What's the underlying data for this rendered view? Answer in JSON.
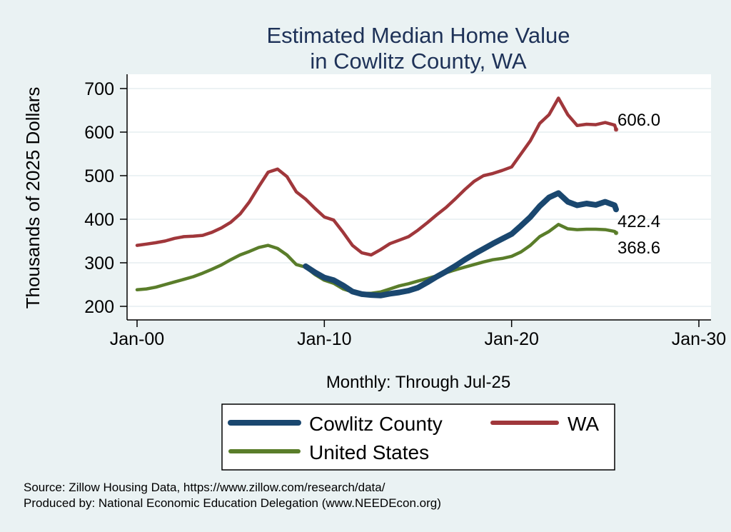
{
  "chart_data": {
    "type": "line",
    "title": [
      "Estimated Median Home Value",
      "in Cowlitz County, WA"
    ],
    "ylabel": "Thousands of 2025 Dollars",
    "xlabel": "Monthly: Through Jul-25",
    "ylim": [
      185,
      720
    ],
    "yticks": [
      200,
      300,
      400,
      500,
      600,
      700
    ],
    "xlim": [
      0,
      31
    ],
    "xticks": [
      0,
      10,
      20,
      30
    ],
    "xtick_labels": [
      "Jan-00",
      "Jan-10",
      "Jan-20",
      "Jan-30"
    ],
    "x_units": "years since Jan-2000",
    "grid": true,
    "legend_position": "bottom",
    "series": [
      {
        "name": "Cowlitz County",
        "color": "#1a476f",
        "points": [
          [
            9.0,
            292
          ],
          [
            9.5,
            278
          ],
          [
            10.0,
            266
          ],
          [
            10.5,
            260
          ],
          [
            11.0,
            248
          ],
          [
            11.5,
            234
          ],
          [
            12.0,
            228
          ],
          [
            12.5,
            226
          ],
          [
            13.0,
            225
          ],
          [
            13.5,
            229
          ],
          [
            14.0,
            232
          ],
          [
            14.5,
            236
          ],
          [
            15.0,
            243
          ],
          [
            15.5,
            255
          ],
          [
            16.0,
            268
          ],
          [
            16.5,
            280
          ],
          [
            17.0,
            293
          ],
          [
            17.5,
            307
          ],
          [
            18.0,
            320
          ],
          [
            18.5,
            332
          ],
          [
            19.0,
            344
          ],
          [
            19.5,
            355
          ],
          [
            20.0,
            366
          ],
          [
            20.5,
            385
          ],
          [
            21.0,
            405
          ],
          [
            21.5,
            430
          ],
          [
            22.0,
            450
          ],
          [
            22.5,
            460
          ],
          [
            23.0,
            440
          ],
          [
            23.5,
            432
          ],
          [
            24.0,
            436
          ],
          [
            24.5,
            433
          ],
          [
            25.0,
            440
          ],
          [
            25.5,
            432
          ],
          [
            25.58,
            422.4
          ]
        ],
        "end_label": "422.4"
      },
      {
        "name": "WA",
        "color": "#a0373b",
        "points": [
          [
            0.0,
            340
          ],
          [
            0.5,
            343
          ],
          [
            1.0,
            346
          ],
          [
            1.5,
            350
          ],
          [
            2.0,
            356
          ],
          [
            2.5,
            360
          ],
          [
            3.0,
            361
          ],
          [
            3.5,
            363
          ],
          [
            4.0,
            370
          ],
          [
            4.5,
            380
          ],
          [
            5.0,
            393
          ],
          [
            5.5,
            412
          ],
          [
            6.0,
            440
          ],
          [
            6.5,
            475
          ],
          [
            7.0,
            508
          ],
          [
            7.5,
            515
          ],
          [
            8.0,
            498
          ],
          [
            8.5,
            463
          ],
          [
            9.0,
            446
          ],
          [
            9.5,
            425
          ],
          [
            10.0,
            405
          ],
          [
            10.5,
            398
          ],
          [
            11.0,
            370
          ],
          [
            11.5,
            340
          ],
          [
            12.0,
            323
          ],
          [
            12.5,
            318
          ],
          [
            13.0,
            330
          ],
          [
            13.5,
            344
          ],
          [
            14.0,
            352
          ],
          [
            14.5,
            360
          ],
          [
            15.0,
            375
          ],
          [
            15.5,
            392
          ],
          [
            16.0,
            410
          ],
          [
            16.5,
            427
          ],
          [
            17.0,
            447
          ],
          [
            17.5,
            468
          ],
          [
            18.0,
            487
          ],
          [
            18.5,
            500
          ],
          [
            19.0,
            505
          ],
          [
            19.5,
            512
          ],
          [
            20.0,
            520
          ],
          [
            20.5,
            550
          ],
          [
            21.0,
            580
          ],
          [
            21.5,
            620
          ],
          [
            22.0,
            640
          ],
          [
            22.5,
            678
          ],
          [
            23.0,
            640
          ],
          [
            23.5,
            615
          ],
          [
            24.0,
            618
          ],
          [
            24.5,
            617
          ],
          [
            25.0,
            622
          ],
          [
            25.5,
            616
          ],
          [
            25.58,
            606.0
          ]
        ],
        "end_label": "606.0"
      },
      {
        "name": "United States",
        "color": "#5a7d2a",
        "points": [
          [
            0.0,
            238
          ],
          [
            0.5,
            240
          ],
          [
            1.0,
            244
          ],
          [
            1.5,
            250
          ],
          [
            2.0,
            256
          ],
          [
            2.5,
            262
          ],
          [
            3.0,
            268
          ],
          [
            3.5,
            276
          ],
          [
            4.0,
            285
          ],
          [
            4.5,
            295
          ],
          [
            5.0,
            307
          ],
          [
            5.5,
            318
          ],
          [
            6.0,
            326
          ],
          [
            6.5,
            335
          ],
          [
            7.0,
            340
          ],
          [
            7.5,
            333
          ],
          [
            8.0,
            318
          ],
          [
            8.5,
            296
          ],
          [
            9.0,
            290
          ],
          [
            9.5,
            273
          ],
          [
            10.0,
            260
          ],
          [
            10.5,
            253
          ],
          [
            11.0,
            240
          ],
          [
            11.5,
            233
          ],
          [
            12.0,
            230
          ],
          [
            12.5,
            230
          ],
          [
            13.0,
            233
          ],
          [
            13.5,
            240
          ],
          [
            14.0,
            247
          ],
          [
            14.5,
            252
          ],
          [
            15.0,
            258
          ],
          [
            15.5,
            264
          ],
          [
            16.0,
            270
          ],
          [
            16.5,
            277
          ],
          [
            17.0,
            284
          ],
          [
            17.5,
            290
          ],
          [
            18.0,
            296
          ],
          [
            18.5,
            302
          ],
          [
            19.0,
            307
          ],
          [
            19.5,
            310
          ],
          [
            20.0,
            315
          ],
          [
            20.5,
            325
          ],
          [
            21.0,
            340
          ],
          [
            21.5,
            360
          ],
          [
            22.0,
            372
          ],
          [
            22.5,
            388
          ],
          [
            23.0,
            378
          ],
          [
            23.5,
            376
          ],
          [
            24.0,
            377
          ],
          [
            24.5,
            377
          ],
          [
            25.0,
            376
          ],
          [
            25.5,
            372
          ],
          [
            25.58,
            368.6
          ]
        ],
        "end_label": "368.6"
      }
    ]
  },
  "legend": {
    "items": [
      {
        "label": "Cowlitz County",
        "color": "#1a476f"
      },
      {
        "label": "WA",
        "color": "#a0373b"
      },
      {
        "label": "United States",
        "color": "#5a7d2a"
      }
    ]
  },
  "source_lines": [
    "Source: Zillow Housing Data, https://www.zillow.com/research/data/",
    "Produced by: National Economic Education Delegation (www.NEEDEcon.org)"
  ]
}
